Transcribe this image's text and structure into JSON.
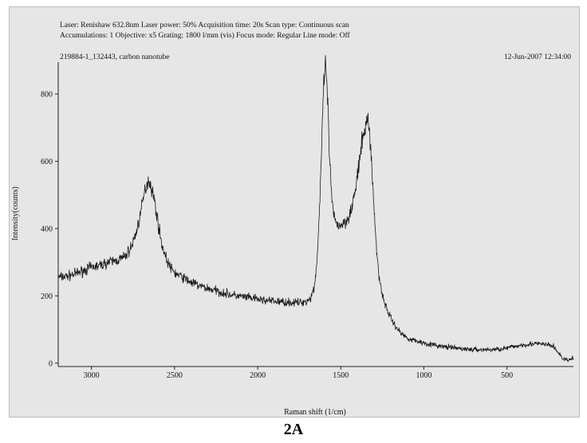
{
  "header": {
    "line1": "Laser: Renishaw 632.8nm  Laser power: 50%  Acquisition time: 20s  Scan type: Continuous scan",
    "line2": "Accumulations: 1  Objective: x5  Grating: 1800 l/mm (vis)  Focus mode: Regular  Line mode: Off",
    "sample": "219884-1_132443, carbon nanotube",
    "timestamp": "12-Jun-2007 12:34:00"
  },
  "caption": "2A",
  "chart_data": {
    "type": "line",
    "title": "",
    "xlabel": "Raman shift (1/cm)",
    "ylabel": "Intensity(counts)",
    "xlim": [
      3200,
      100
    ],
    "ylim": [
      -10,
      890
    ],
    "x_reversed": true,
    "xticks": [
      3000,
      2500,
      2000,
      1500,
      1000,
      500
    ],
    "yticks": [
      0,
      200,
      400,
      600,
      800
    ],
    "grid": false,
    "line_color": "#1a1a1a",
    "noisy": true,
    "series": [
      {
        "x": [
          3200,
          3150,
          3100,
          3050,
          3000,
          2950,
          2900,
          2850,
          2800,
          2760,
          2730,
          2700,
          2680,
          2665,
          2655,
          2640,
          2620,
          2600,
          2580,
          2550,
          2520,
          2490,
          2450,
          2400,
          2350,
          2300,
          2250,
          2200,
          2150,
          2100,
          2050,
          2000,
          1950,
          1900,
          1850,
          1800,
          1750,
          1700,
          1680,
          1660,
          1645,
          1630,
          1615,
          1605,
          1598,
          1592,
          1586,
          1578,
          1568,
          1555,
          1540,
          1525,
          1505,
          1485,
          1465,
          1450,
          1430,
          1410,
          1390,
          1370,
          1355,
          1345,
          1338,
          1332,
          1325,
          1315,
          1300,
          1285,
          1270,
          1250,
          1230,
          1200,
          1170,
          1140,
          1100,
          1060,
          1000,
          950,
          900,
          850,
          800,
          750,
          700,
          650,
          600,
          550,
          500,
          450,
          400,
          350,
          300,
          260,
          220,
          190,
          160,
          130,
          100
        ],
        "y": [
          255,
          258,
          265,
          275,
          285,
          290,
          300,
          305,
          315,
          345,
          390,
          455,
          510,
          535,
          545,
          525,
          480,
          420,
          360,
          310,
          280,
          265,
          255,
          240,
          230,
          222,
          215,
          208,
          202,
          198,
          194,
          190,
          186,
          184,
          182,
          180,
          180,
          185,
          195,
          225,
          290,
          430,
          640,
          790,
          860,
          880,
          860,
          760,
          620,
          490,
          430,
          415,
          410,
          415,
          425,
          440,
          470,
          520,
          590,
          660,
          700,
          715,
          720,
          712,
          680,
          600,
          460,
          340,
          260,
          205,
          170,
          135,
          110,
          90,
          75,
          68,
          60,
          55,
          50,
          47,
          44,
          42,
          40,
          40,
          40,
          42,
          45,
          50,
          55,
          57,
          57,
          55,
          50,
          30,
          12,
          8,
          15
        ]
      }
    ]
  }
}
